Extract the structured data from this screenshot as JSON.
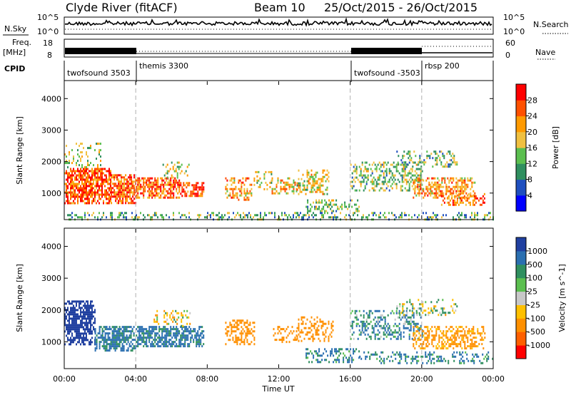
{
  "header": {
    "radar": "Clyde River (fitACF)",
    "beam": "Beam 10",
    "dates": "25/Oct/2015 - 26/Oct/2015"
  },
  "noise_panel": {
    "left_label": "N.Sky",
    "left_ticks": [
      "10^5",
      "10^0"
    ],
    "right_ticks": [
      "10^5",
      "10^0"
    ],
    "right_label": "N.Search"
  },
  "freq_panel": {
    "left_label_1": "Freq.",
    "left_label_2": "[MHz]",
    "left_ticks": [
      "18",
      "8"
    ],
    "right_ticks": [
      "60",
      "0"
    ],
    "right_label": "Nave",
    "cpid_label": "CPID"
  },
  "cpid": [
    {
      "name": "twofsound 3503",
      "start_hour": 0,
      "end_hour": 4
    },
    {
      "name": "themis 3300",
      "start_hour": 4,
      "end_hour": 16
    },
    {
      "name": "twofsound -3503",
      "start_hour": 16,
      "end_hour": 20
    },
    {
      "name": "rbsp 200",
      "start_hour": 20,
      "end_hour": 24
    }
  ],
  "x_axis": {
    "label": "Time UT",
    "ticks": [
      "00:00",
      "04:00",
      "08:00",
      "12:00",
      "16:00",
      "20:00",
      "00:00"
    ]
  },
  "power_panel": {
    "ylabel": "Slant Range [km]",
    "yticks": [
      "4000",
      "3000",
      "2000",
      "1000"
    ],
    "colorbar_label": "Power [dB]",
    "colorbar_ticks": [
      "28",
      "24",
      "20",
      "16",
      "12",
      "8",
      "4"
    ],
    "colors": [
      "#0000ff",
      "#1f4fbf",
      "#2f8f5f",
      "#5bbf4f",
      "#f0c040",
      "#ff9a00",
      "#ff5000",
      "#ff0000"
    ]
  },
  "velocity_panel": {
    "ylabel": "Slant Range [km]",
    "yticks": [
      "4000",
      "3000",
      "2000",
      "1000"
    ],
    "colorbar_label": "Velocity [m s^-1]",
    "colorbar_ticks": [
      "1000",
      "500",
      "100",
      "25",
      "-25",
      "-100",
      "-500",
      "-1000"
    ],
    "colors": [
      "#2040a0",
      "#2a6fb0",
      "#2f8f5f",
      "#5bbf4f",
      "#c8c8c8",
      "#ffc000",
      "#ff9000",
      "#ff6000",
      "#ff0000"
    ]
  },
  "chart_data": [
    {
      "type": "heatmap",
      "title": "Power",
      "x_range_hours": [
        0,
        24
      ],
      "y_range_km": [
        180,
        4550
      ],
      "colorbar_range_db": [
        0,
        32
      ],
      "blobs": [
        {
          "t0": 0.0,
          "t1": 2.6,
          "r0": 700,
          "r1": 1800,
          "value": 26,
          "density": 0.85
        },
        {
          "t0": 2.6,
          "t1": 4.0,
          "r0": 700,
          "r1": 1600,
          "value": 25,
          "density": 0.85
        },
        {
          "t0": 4.0,
          "t1": 6.4,
          "r0": 850,
          "r1": 1500,
          "value": 24,
          "density": 0.8
        },
        {
          "t0": 6.4,
          "t1": 7.8,
          "r0": 900,
          "r1": 1350,
          "value": 26,
          "density": 0.8
        },
        {
          "t0": 0.0,
          "t1": 2.0,
          "r0": 1800,
          "r1": 2600,
          "value": 16,
          "density": 0.25
        },
        {
          "t0": 5.5,
          "t1": 7.0,
          "r0": 1500,
          "r1": 2000,
          "value": 16,
          "density": 0.25
        },
        {
          "t0": 9.0,
          "t1": 10.5,
          "r0": 800,
          "r1": 1500,
          "value": 22,
          "density": 0.55
        },
        {
          "t0": 10.6,
          "t1": 11.6,
          "r0": 1100,
          "r1": 1700,
          "value": 17,
          "density": 0.35
        },
        {
          "t0": 11.6,
          "t1": 13.0,
          "r0": 1000,
          "r1": 1500,
          "value": 20,
          "density": 0.4
        },
        {
          "t0": 13.0,
          "t1": 14.8,
          "r0": 1000,
          "r1": 1750,
          "value": 18,
          "density": 0.45
        },
        {
          "t0": 13.5,
          "t1": 16.5,
          "r0": 400,
          "r1": 800,
          "value": 14,
          "density": 0.4
        },
        {
          "t0": 16.0,
          "t1": 20.0,
          "r0": 1100,
          "r1": 2000,
          "value": 14,
          "density": 0.45
        },
        {
          "t0": 18.5,
          "t1": 22.0,
          "r0": 1850,
          "r1": 2350,
          "value": 13,
          "density": 0.35
        },
        {
          "t0": 19.5,
          "t1": 23.0,
          "r0": 850,
          "r1": 1500,
          "value": 22,
          "density": 0.6
        },
        {
          "t0": 21.0,
          "t1": 23.5,
          "r0": 600,
          "r1": 1000,
          "value": 25,
          "density": 0.5
        },
        {
          "t0": 0.0,
          "t1": 24.0,
          "r0": 180,
          "r1": 400,
          "value": 12,
          "density": 0.4
        }
      ]
    },
    {
      "type": "heatmap",
      "title": "Velocity",
      "x_range_hours": [
        0,
        24
      ],
      "y_range_km": [
        180,
        4550
      ],
      "colorbar_range_ms": [
        -1000,
        1000
      ],
      "blobs": [
        {
          "t0": 0.0,
          "t1": 1.7,
          "r0": 900,
          "r1": 2300,
          "value": 800,
          "density": 0.8
        },
        {
          "t0": 1.7,
          "t1": 4.0,
          "r0": 750,
          "r1": 1500,
          "value": 150,
          "density": 0.8
        },
        {
          "t0": 4.0,
          "t1": 7.8,
          "r0": 850,
          "r1": 1500,
          "value": 150,
          "density": 0.75
        },
        {
          "t0": 5.0,
          "t1": 7.0,
          "r0": 1500,
          "r1": 2000,
          "value": -60,
          "density": 0.3
        },
        {
          "t0": 9.0,
          "t1": 10.6,
          "r0": 900,
          "r1": 1700,
          "value": -300,
          "density": 0.55
        },
        {
          "t0": 11.6,
          "t1": 13.0,
          "r0": 1000,
          "r1": 1500,
          "value": -250,
          "density": 0.35
        },
        {
          "t0": 13.0,
          "t1": 15.0,
          "r0": 1000,
          "r1": 1800,
          "value": -350,
          "density": 0.4
        },
        {
          "t0": 13.5,
          "t1": 16.5,
          "r0": 350,
          "r1": 800,
          "value": 120,
          "density": 0.4
        },
        {
          "t0": 16.0,
          "t1": 20.0,
          "r0": 1100,
          "r1": 2000,
          "value": 100,
          "density": 0.45
        },
        {
          "t0": 18.5,
          "t1": 22.0,
          "r0": 1850,
          "r1": 2350,
          "value": 0,
          "density": 0.3
        },
        {
          "t0": 19.5,
          "t1": 23.5,
          "r0": 800,
          "r1": 1500,
          "value": -150,
          "density": 0.55
        },
        {
          "t0": 16.5,
          "t1": 24.0,
          "r0": 350,
          "r1": 700,
          "value": 120,
          "density": 0.35
        }
      ]
    }
  ]
}
